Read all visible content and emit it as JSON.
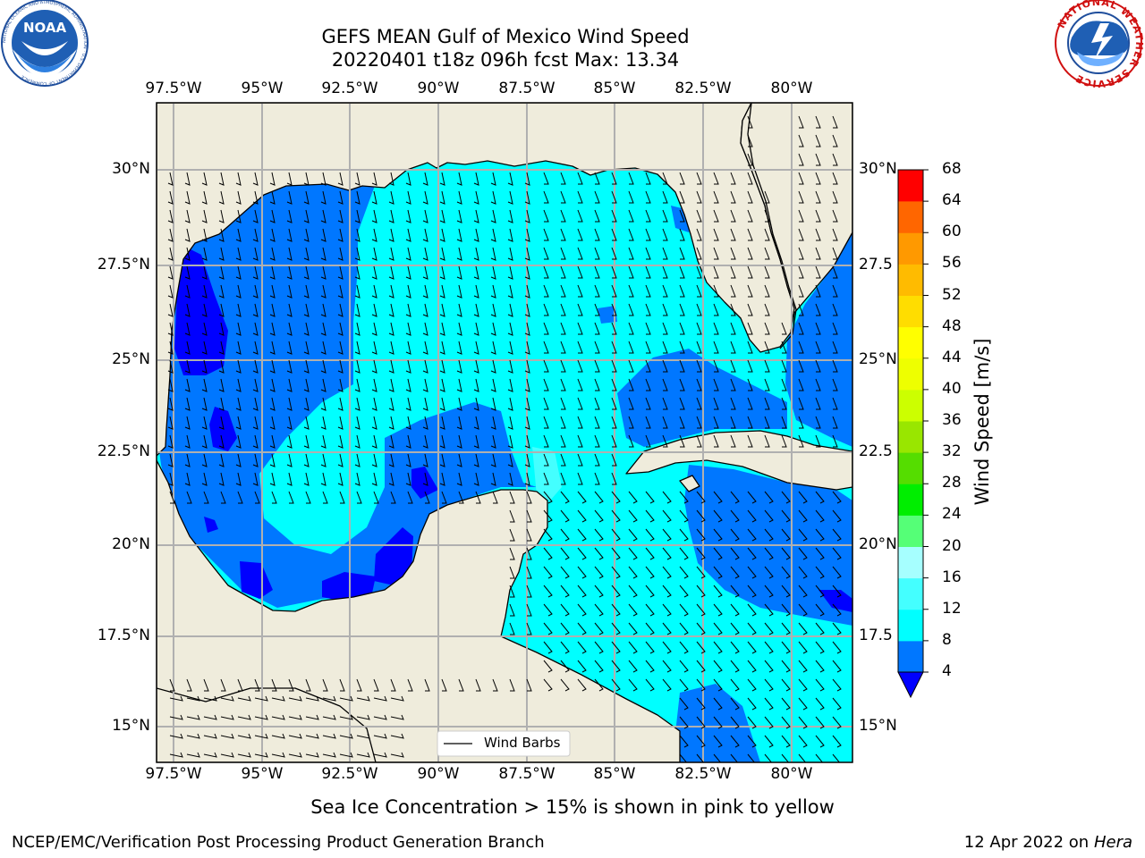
{
  "header": {
    "title_line1": "GEFS MEAN Gulf of Mexico Wind Speed",
    "title_line2": "20220401 t18z 096h fcst   Max: 13.34"
  },
  "logos": {
    "left": "NOAA",
    "left_ring": "NATIONAL OCEANIC AND ATMOSPHERIC ADMINISTRATION · U.S. DEPARTMENT OF COMMERCE",
    "right_ring": "NATIONAL WEATHER SERVICE"
  },
  "axes": {
    "lon_ticks": [
      "97.5°W",
      "95°W",
      "92.5°W",
      "90°W",
      "87.5°W",
      "85°W",
      "82.5°W",
      "80°W"
    ],
    "lat_ticks_left": [
      "30°N",
      "27.5°N",
      "25°N",
      "22.5°N",
      "20°N",
      "17.5°N",
      "15°N"
    ],
    "lat_ticks_right": [
      "30°N",
      "27.5",
      "25°N",
      "22.5",
      "20°N",
      "17.5",
      "15°N"
    ]
  },
  "legend": {
    "label": "Wind Barbs"
  },
  "colorbar": {
    "label": "Wind Speed [m/s]",
    "ticks": [
      "4",
      "8",
      "12",
      "16",
      "20",
      "24",
      "28",
      "32",
      "36",
      "40",
      "44",
      "48",
      "52",
      "56",
      "60",
      "64",
      "68"
    ],
    "colors": [
      "#0077ff",
      "#00ffff",
      "#44ffff",
      "#a6ffff",
      "#55ff77",
      "#00ee00",
      "#55dd00",
      "#99e600",
      "#ccff00",
      "#eeff00",
      "#ffff00",
      "#ffdd00",
      "#ffbb00",
      "#ff9900",
      "#ff6600",
      "#ff3300"
    ],
    "under_color": "#0000ff",
    "max_color": "#ff0000"
  },
  "caption": "Sea Ice Concentration > 15% is shown in pink to yellow",
  "footer": {
    "left": "NCEP/EMC/Verification Post Processing Product Generation Branch",
    "right_date": "12 Apr 2022 on ",
    "right_host": "Hera"
  },
  "colors": {
    "land": "#efecdc",
    "grid": "#b0b0b0",
    "wind_4_8": "#0077ff",
    "wind_8_12": "#00ffff",
    "wind_lt_4": "#0000ff"
  }
}
